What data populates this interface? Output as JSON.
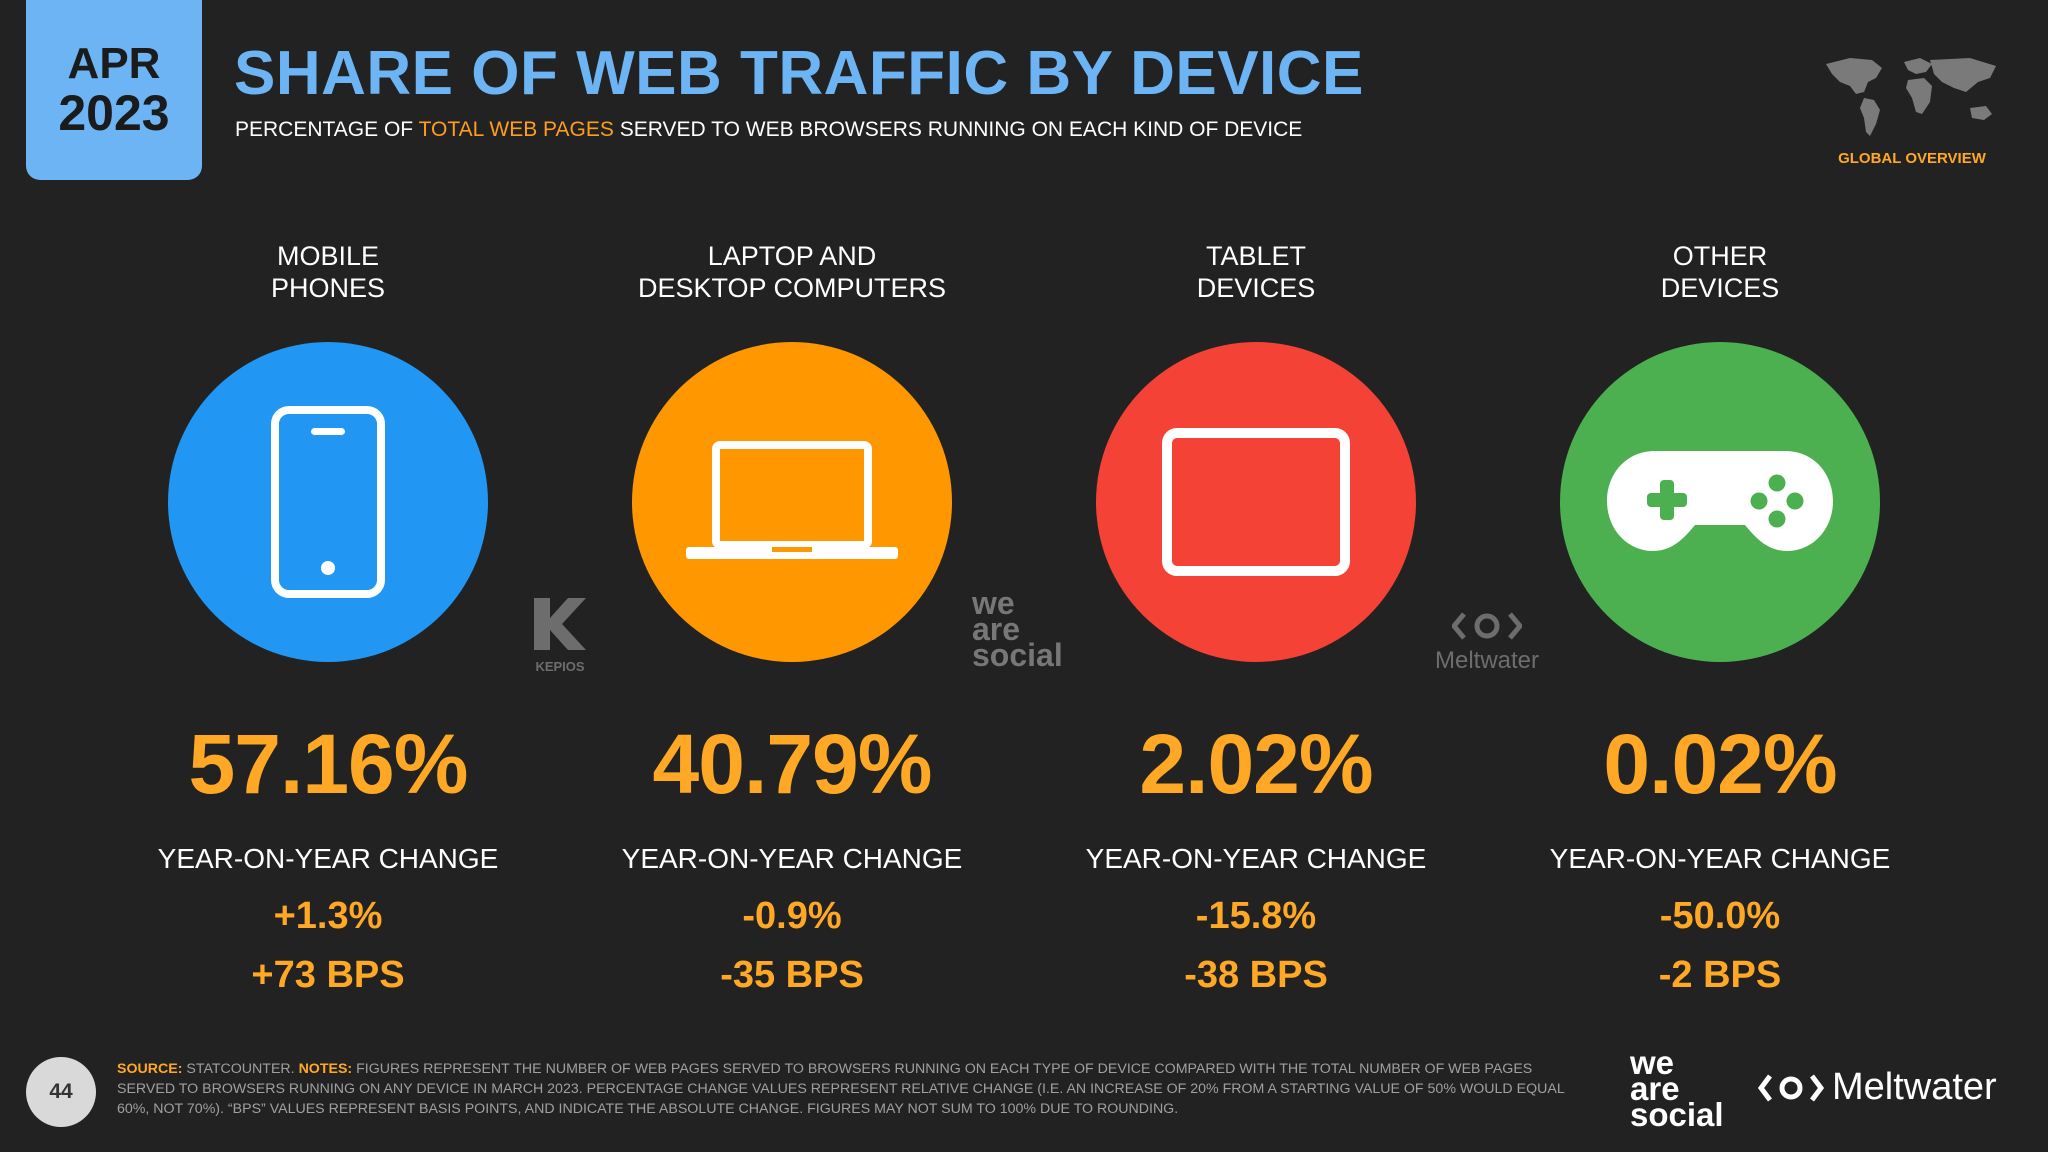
{
  "header": {
    "month": "APR",
    "year": "2023",
    "title": "SHARE OF WEB TRAFFIC BY DEVICE",
    "subtitle_pre": "PERCENTAGE OF ",
    "subtitle_highlight": "TOTAL WEB PAGES",
    "subtitle_post": " SERVED TO WEB BROWSERS RUNNING ON EACH KIND OF DEVICE",
    "badge": "GLOBAL OVERVIEW"
  },
  "colors": {
    "background": "#222222",
    "title": "#6cb4f4",
    "accent": "#ffa825",
    "mobile": "#2196f3",
    "laptop": "#ff9800",
    "tablet": "#f44336",
    "other": "#4caf50"
  },
  "devices": [
    {
      "label_line1": "MOBILE",
      "label_line2": "PHONES",
      "icon": "mobile-phone-icon",
      "share": "57.16%",
      "yoy_label": "YEAR-ON-YEAR CHANGE",
      "yoy_pct": "+1.3%",
      "yoy_bps": "+73 BPS"
    },
    {
      "label_line1": "LAPTOP AND",
      "label_line2": "DESKTOP COMPUTERS",
      "icon": "laptop-icon",
      "share": "40.79%",
      "yoy_label": "YEAR-ON-YEAR CHANGE",
      "yoy_pct": "-0.9%",
      "yoy_bps": "-35 BPS"
    },
    {
      "label_line1": "TABLET",
      "label_line2": "DEVICES",
      "icon": "tablet-icon",
      "share": "2.02%",
      "yoy_label": "YEAR-ON-YEAR CHANGE",
      "yoy_pct": "-15.8%",
      "yoy_bps": "-38 BPS"
    },
    {
      "label_line1": "OTHER",
      "label_line2": "DEVICES",
      "icon": "gamepad-icon",
      "share": "0.02%",
      "yoy_label": "YEAR-ON-YEAR CHANGE",
      "yoy_pct": "-50.0%",
      "yoy_bps": "-2 BPS"
    }
  ],
  "watermarks": {
    "kepios": "KEPIOS",
    "was_1": "we",
    "was_2": "are",
    "was_3": "social",
    "meltwater": "Meltwater"
  },
  "footer": {
    "page_number": "44",
    "source_label": "SOURCE:",
    "source_text": " STATCOUNTER. ",
    "notes_label": "NOTES:",
    "notes_text": " FIGURES REPRESENT THE NUMBER OF WEB PAGES SERVED TO BROWSERS RUNNING ON EACH TYPE OF DEVICE COMPARED WITH THE TOTAL NUMBER OF WEB PAGES SERVED TO BROWSERS RUNNING ON ANY DEVICE IN MARCH 2023. PERCENTAGE CHANGE VALUES REPRESENT RELATIVE CHANGE (I.E. AN INCREASE OF 20% FROM A STARTING VALUE OF 50% WOULD EQUAL 60%, NOT 70%). “BPS” VALUES REPRESENT BASIS POINTS, AND INDICATE THE ABSOLUTE CHANGE. FIGURES MAY NOT SUM TO 100% DUE TO ROUNDING.",
    "logo_was_1": "we",
    "logo_was_2": "are",
    "logo_was_3": "social",
    "logo_meltwater": "Meltwater"
  }
}
